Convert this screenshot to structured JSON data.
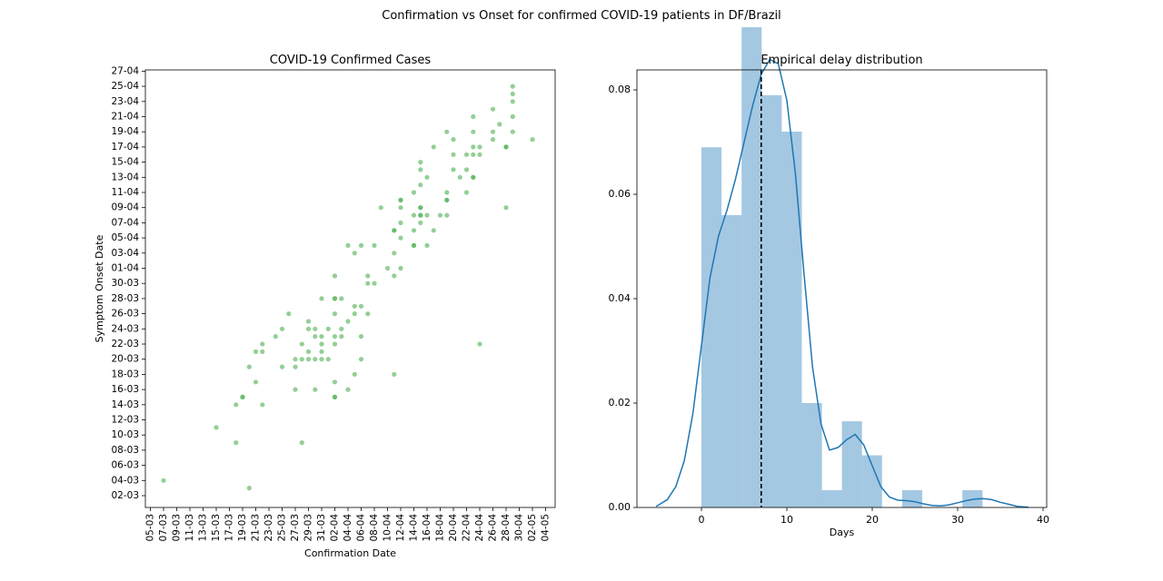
{
  "suptitle": "Confirmation vs Onset for confirmed COVID-19 patients in DF/Brazil",
  "chart_data": [
    {
      "type": "scatter",
      "title": "COVID-19 Confirmed Cases",
      "xlabel": "Confirmation Date",
      "ylabel": "Symptom Onset Date",
      "color": "#4caf50",
      "x_ticks": [
        "05-03",
        "07-03",
        "09-03",
        "11-03",
        "13-03",
        "15-03",
        "17-03",
        "19-03",
        "21-03",
        "23-03",
        "25-03",
        "27-03",
        "29-03",
        "31-03",
        "02-04",
        "04-04",
        "06-04",
        "08-04",
        "10-04",
        "12-04",
        "14-04",
        "16-04",
        "18-04",
        "20-04",
        "22-04",
        "24-04",
        "26-04",
        "28-04",
        "30-04",
        "02-05",
        "04-05"
      ],
      "y_ticks": [
        "02-03",
        "04-03",
        "06-03",
        "08-03",
        "10-03",
        "12-03",
        "14-03",
        "16-03",
        "18-03",
        "20-03",
        "22-03",
        "24-03",
        "26-03",
        "28-03",
        "30-03",
        "01-04",
        "03-04",
        "05-04",
        "07-04",
        "09-04",
        "11-04",
        "13-04",
        "15-04",
        "17-04",
        "19-04",
        "21-04",
        "23-04",
        "25-04",
        "27-04"
      ],
      "points": [
        [
          "07-03",
          "04-03"
        ],
        [
          "15-03",
          "11-03"
        ],
        [
          "18-03",
          "09-03"
        ],
        [
          "18-03",
          "14-03"
        ],
        [
          "19-03",
          "15-03"
        ],
        [
          "19-03",
          "15-03"
        ],
        [
          "20-03",
          "19-03"
        ],
        [
          "20-03",
          "03-03"
        ],
        [
          "21-03",
          "17-03"
        ],
        [
          "21-03",
          "21-03"
        ],
        [
          "22-03",
          "14-03"
        ],
        [
          "22-03",
          "21-03"
        ],
        [
          "22-03",
          "22-03"
        ],
        [
          "24-03",
          "23-03"
        ],
        [
          "25-03",
          "19-03"
        ],
        [
          "25-03",
          "24-03"
        ],
        [
          "26-03",
          "26-03"
        ],
        [
          "27-03",
          "16-03"
        ],
        [
          "27-03",
          "19-03"
        ],
        [
          "27-03",
          "20-03"
        ],
        [
          "28-03",
          "09-03"
        ],
        [
          "28-03",
          "20-03"
        ],
        [
          "28-03",
          "22-03"
        ],
        [
          "29-03",
          "20-03"
        ],
        [
          "29-03",
          "21-03"
        ],
        [
          "29-03",
          "24-03"
        ],
        [
          "29-03",
          "25-03"
        ],
        [
          "30-03",
          "16-03"
        ],
        [
          "30-03",
          "20-03"
        ],
        [
          "30-03",
          "23-03"
        ],
        [
          "30-03",
          "24-03"
        ],
        [
          "31-03",
          "20-03"
        ],
        [
          "31-03",
          "21-03"
        ],
        [
          "31-03",
          "22-03"
        ],
        [
          "31-03",
          "23-03"
        ],
        [
          "31-03",
          "28-03"
        ],
        [
          "01-04",
          "20-03"
        ],
        [
          "01-04",
          "24-03"
        ],
        [
          "02-04",
          "15-03"
        ],
        [
          "02-04",
          "15-03"
        ],
        [
          "02-04",
          "17-03"
        ],
        [
          "02-04",
          "22-03"
        ],
        [
          "02-04",
          "23-03"
        ],
        [
          "02-04",
          "26-03"
        ],
        [
          "02-04",
          "28-03"
        ],
        [
          "02-04",
          "28-03"
        ],
        [
          "02-04",
          "31-03"
        ],
        [
          "03-04",
          "24-03"
        ],
        [
          "03-04",
          "23-03"
        ],
        [
          "03-04",
          "28-03"
        ],
        [
          "04-04",
          "16-03"
        ],
        [
          "04-04",
          "25-03"
        ],
        [
          "04-04",
          "04-04"
        ],
        [
          "05-04",
          "18-03"
        ],
        [
          "05-04",
          "26-03"
        ],
        [
          "05-04",
          "27-03"
        ],
        [
          "05-04",
          "03-04"
        ],
        [
          "06-04",
          "20-03"
        ],
        [
          "06-04",
          "23-03"
        ],
        [
          "06-04",
          "27-03"
        ],
        [
          "06-04",
          "04-04"
        ],
        [
          "07-04",
          "26-03"
        ],
        [
          "07-04",
          "30-03"
        ],
        [
          "07-04",
          "31-03"
        ],
        [
          "08-04",
          "30-03"
        ],
        [
          "08-04",
          "04-04"
        ],
        [
          "09-04",
          "09-04"
        ],
        [
          "10-04",
          "01-04"
        ],
        [
          "11-04",
          "18-03"
        ],
        [
          "11-04",
          "31-03"
        ],
        [
          "11-04",
          "03-04"
        ],
        [
          "11-04",
          "06-04"
        ],
        [
          "11-04",
          "06-04"
        ],
        [
          "12-04",
          "01-04"
        ],
        [
          "12-04",
          "05-04"
        ],
        [
          "12-04",
          "07-04"
        ],
        [
          "12-04",
          "09-04"
        ],
        [
          "12-04",
          "10-04"
        ],
        [
          "12-04",
          "10-04"
        ],
        [
          "14-04",
          "04-04"
        ],
        [
          "14-04",
          "04-04"
        ],
        [
          "14-04",
          "06-04"
        ],
        [
          "14-04",
          "08-04"
        ],
        [
          "14-04",
          "11-04"
        ],
        [
          "15-04",
          "07-04"
        ],
        [
          "15-04",
          "08-04"
        ],
        [
          "15-04",
          "08-04"
        ],
        [
          "15-04",
          "09-04"
        ],
        [
          "15-04",
          "09-04"
        ],
        [
          "15-04",
          "12-04"
        ],
        [
          "15-04",
          "14-04"
        ],
        [
          "15-04",
          "15-04"
        ],
        [
          "16-04",
          "04-04"
        ],
        [
          "16-04",
          "08-04"
        ],
        [
          "16-04",
          "13-04"
        ],
        [
          "17-04",
          "06-04"
        ],
        [
          "17-04",
          "17-04"
        ],
        [
          "18-04",
          "08-04"
        ],
        [
          "19-04",
          "08-04"
        ],
        [
          "19-04",
          "10-04"
        ],
        [
          "19-04",
          "10-04"
        ],
        [
          "19-04",
          "11-04"
        ],
        [
          "19-04",
          "19-04"
        ],
        [
          "20-04",
          "14-04"
        ],
        [
          "20-04",
          "16-04"
        ],
        [
          "20-04",
          "18-04"
        ],
        [
          "21-04",
          "13-04"
        ],
        [
          "22-04",
          "11-04"
        ],
        [
          "22-04",
          "14-04"
        ],
        [
          "22-04",
          "16-04"
        ],
        [
          "23-04",
          "13-04"
        ],
        [
          "23-04",
          "13-04"
        ],
        [
          "23-04",
          "16-04"
        ],
        [
          "23-04",
          "17-04"
        ],
        [
          "23-04",
          "19-04"
        ],
        [
          "23-04",
          "21-04"
        ],
        [
          "24-04",
          "22-03"
        ],
        [
          "24-04",
          "16-04"
        ],
        [
          "24-04",
          "17-04"
        ],
        [
          "26-04",
          "18-04"
        ],
        [
          "26-04",
          "19-04"
        ],
        [
          "26-04",
          "22-04"
        ],
        [
          "27-04",
          "20-04"
        ],
        [
          "28-04",
          "09-04"
        ],
        [
          "28-04",
          "17-04"
        ],
        [
          "28-04",
          "17-04"
        ],
        [
          "29-04",
          "19-04"
        ],
        [
          "29-04",
          "21-04"
        ],
        [
          "29-04",
          "23-04"
        ],
        [
          "29-04",
          "24-04"
        ],
        [
          "29-04",
          "25-04"
        ],
        [
          "02-05",
          "18-04"
        ]
      ]
    },
    {
      "type": "bar",
      "title": "Empirical delay distribution",
      "xlabel": "Days",
      "ylabel": "",
      "xlim": [
        -6,
        40
      ],
      "ylim": [
        0,
        0.097
      ],
      "x_ticks": [
        0,
        10,
        20,
        30,
        40
      ],
      "y_ticks": [
        "0.00",
        "0.02",
        "0.04",
        "0.06",
        "0.08"
      ],
      "bar_color": "#7eb0d5",
      "line_color": "#1f77b4",
      "bin_edges": [
        0,
        2.35,
        4.7,
        7.05,
        9.4,
        11.75,
        14.1,
        16.45,
        18.8,
        21.15,
        23.5,
        25.85,
        28.2,
        30.55,
        32.9
      ],
      "values": [
        0.069,
        0.056,
        0.092,
        0.079,
        0.072,
        0.02,
        0.0033,
        0.0165,
        0.01,
        0,
        0.0033,
        0,
        0,
        0.0033
      ],
      "kde": [
        [
          -5.3,
          0.0002
        ],
        [
          -4,
          0.0015
        ],
        [
          -3,
          0.004
        ],
        [
          -2,
          0.009
        ],
        [
          -1,
          0.018
        ],
        [
          0,
          0.031
        ],
        [
          1,
          0.044
        ],
        [
          2,
          0.052
        ],
        [
          3,
          0.057
        ],
        [
          4,
          0.063
        ],
        [
          5,
          0.07
        ],
        [
          6,
          0.077
        ],
        [
          7,
          0.083
        ],
        [
          8,
          0.0858
        ],
        [
          9,
          0.085
        ],
        [
          10,
          0.078
        ],
        [
          11,
          0.064
        ],
        [
          12,
          0.045
        ],
        [
          13,
          0.027
        ],
        [
          14,
          0.016
        ],
        [
          15,
          0.011
        ],
        [
          16,
          0.0115
        ],
        [
          17,
          0.013
        ],
        [
          18,
          0.014
        ],
        [
          19,
          0.012
        ],
        [
          20,
          0.008
        ],
        [
          21,
          0.004
        ],
        [
          22,
          0.002
        ],
        [
          23,
          0.0014
        ],
        [
          24,
          0.0013
        ],
        [
          25,
          0.0011
        ],
        [
          26,
          0.0007
        ],
        [
          27,
          0.0004
        ],
        [
          28,
          0.0003
        ],
        [
          29,
          0.0005
        ],
        [
          30,
          0.0009
        ],
        [
          31,
          0.0013
        ],
        [
          32,
          0.0016
        ],
        [
          33,
          0.0017
        ],
        [
          34,
          0.0015
        ],
        [
          35,
          0.001
        ],
        [
          36,
          0.0006
        ],
        [
          37,
          0.0002
        ],
        [
          38.3,
          5e-05
        ]
      ],
      "mean_line": 7
    }
  ]
}
